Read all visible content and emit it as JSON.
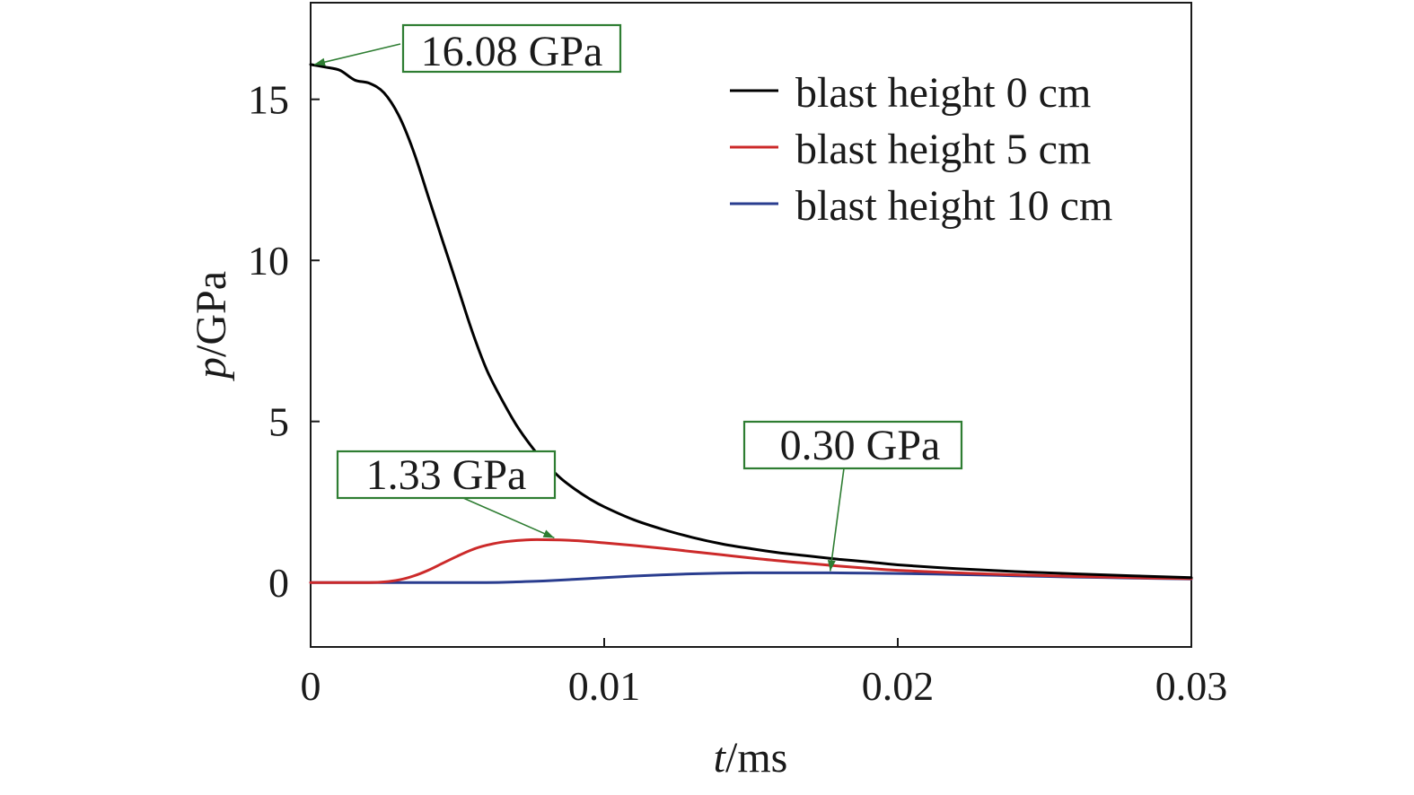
{
  "chart_data": {
    "type": "line",
    "xlabel_var": "t",
    "xlabel_unit": "/ms",
    "ylabel_var": "p",
    "ylabel_unit": "/GPa",
    "xlim": [
      0,
      0.03
    ],
    "ylim": [
      -2,
      18
    ],
    "xticks": [
      {
        "value": 0,
        "label": "0"
      },
      {
        "value": 0.01,
        "label": "0.01"
      },
      {
        "value": 0.02,
        "label": "0.02"
      },
      {
        "value": 0.03,
        "label": "0.03"
      }
    ],
    "yticks": [
      {
        "value": 0,
        "label": "0"
      },
      {
        "value": 5,
        "label": "5"
      },
      {
        "value": 10,
        "label": "10"
      },
      {
        "value": 15,
        "label": "15"
      }
    ],
    "grid": false,
    "legend_position": "top-right",
    "series": [
      {
        "name": "blast height 0 cm",
        "color": "#000000",
        "x": [
          0,
          0.0005,
          0.001,
          0.0015,
          0.002,
          0.0025,
          0.003,
          0.0035,
          0.004,
          0.0045,
          0.005,
          0.0055,
          0.006,
          0.0065,
          0.007,
          0.0075,
          0.008,
          0.0085,
          0.009,
          0.0095,
          0.01,
          0.011,
          0.012,
          0.013,
          0.014,
          0.015,
          0.016,
          0.017,
          0.018,
          0.019,
          0.02,
          0.022,
          0.024,
          0.026,
          0.028,
          0.03
        ],
        "y": [
          16.08,
          16.0,
          15.9,
          15.6,
          15.5,
          15.2,
          14.5,
          13.4,
          12.0,
          10.6,
          9.2,
          7.8,
          6.6,
          5.7,
          4.9,
          4.25,
          3.7,
          3.25,
          2.9,
          2.6,
          2.35,
          1.95,
          1.65,
          1.4,
          1.2,
          1.05,
          0.92,
          0.82,
          0.72,
          0.64,
          0.55,
          0.43,
          0.34,
          0.27,
          0.21,
          0.15
        ]
      },
      {
        "name": "blast height 5 cm",
        "color": "#cc2a2a",
        "x": [
          0,
          0.001,
          0.002,
          0.0025,
          0.003,
          0.0035,
          0.004,
          0.0045,
          0.005,
          0.0055,
          0.006,
          0.0065,
          0.007,
          0.0075,
          0.008,
          0.0085,
          0.009,
          0.0095,
          0.01,
          0.011,
          0.012,
          0.013,
          0.014,
          0.015,
          0.016,
          0.017,
          0.018,
          0.019,
          0.02,
          0.022,
          0.024,
          0.026,
          0.028,
          0.03
        ],
        "y": [
          0,
          0,
          0,
          0.02,
          0.08,
          0.2,
          0.38,
          0.6,
          0.82,
          1.02,
          1.16,
          1.25,
          1.3,
          1.33,
          1.33,
          1.32,
          1.3,
          1.27,
          1.23,
          1.15,
          1.06,
          0.96,
          0.86,
          0.76,
          0.67,
          0.59,
          0.51,
          0.44,
          0.38,
          0.3,
          0.24,
          0.19,
          0.15,
          0.12
        ]
      },
      {
        "name": "blast height 10 cm",
        "color": "#2a3d8f",
        "x": [
          0,
          0.002,
          0.004,
          0.006,
          0.007,
          0.008,
          0.009,
          0.01,
          0.011,
          0.012,
          0.013,
          0.014,
          0.015,
          0.016,
          0.017,
          0.0177,
          0.019,
          0.02,
          0.022,
          0.024,
          0.026,
          0.028,
          0.03
        ],
        "y": [
          0,
          0,
          0,
          0,
          0.02,
          0.05,
          0.1,
          0.15,
          0.2,
          0.24,
          0.27,
          0.29,
          0.3,
          0.3,
          0.3,
          0.3,
          0.29,
          0.28,
          0.25,
          0.21,
          0.17,
          0.14,
          0.11
        ]
      }
    ],
    "annotations": [
      {
        "text": "16.08 GPa",
        "x": 0.0,
        "y": 16.08
      },
      {
        "text": "1.33 GPa",
        "x": 0.0083,
        "y": 1.33
      },
      {
        "text": "0.30 GPa",
        "x": 0.0177,
        "y": 0.3
      }
    ],
    "annotation_color": "#2e7d32"
  }
}
